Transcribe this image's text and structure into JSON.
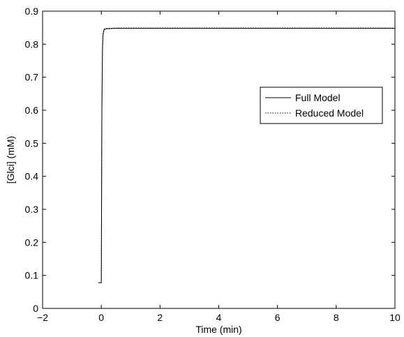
{
  "chart_data": {
    "type": "line",
    "title": "",
    "xlabel": "Time (min)",
    "ylabel": "[Glci] (mM)",
    "xlim": [
      -2,
      10
    ],
    "ylim": [
      0,
      0.9
    ],
    "xticks": [
      -2,
      0,
      2,
      4,
      6,
      8,
      10
    ],
    "yticks": [
      0,
      0.1,
      0.2,
      0.3,
      0.4,
      0.5,
      0.6,
      0.7,
      0.8,
      0.9
    ],
    "xtick_labels": [
      "−2",
      "0",
      "2",
      "4",
      "6",
      "8",
      "10"
    ],
    "ytick_labels": [
      "0",
      "0.1",
      "0.2",
      "0.3",
      "0.4",
      "0.5",
      "0.6",
      "0.7",
      "0.8",
      "0.9"
    ],
    "grid": false,
    "legend_position": "right",
    "series": [
      {
        "name": "Full Model",
        "style": "solid",
        "color": "#000000",
        "x": [
          -0.1,
          -0.02,
          0.0,
          0.02,
          0.04,
          0.06,
          0.1,
          0.2,
          0.5,
          1,
          2,
          4,
          6,
          8,
          10
        ],
        "y": [
          0.078,
          0.078,
          0.078,
          0.6,
          0.78,
          0.83,
          0.845,
          0.847,
          0.848,
          0.848,
          0.848,
          0.848,
          0.848,
          0.848,
          0.848
        ]
      },
      {
        "name": "Reduced Model",
        "style": "dotted",
        "color": "#000000",
        "x": [
          -0.1,
          -0.02,
          0.0,
          0.02,
          0.04,
          0.06,
          0.1,
          0.2,
          0.5,
          1,
          2,
          4,
          6,
          8,
          10
        ],
        "y": [
          0.078,
          0.078,
          0.078,
          0.61,
          0.79,
          0.835,
          0.846,
          0.848,
          0.849,
          0.849,
          0.849,
          0.849,
          0.849,
          0.849,
          0.849
        ]
      }
    ]
  }
}
